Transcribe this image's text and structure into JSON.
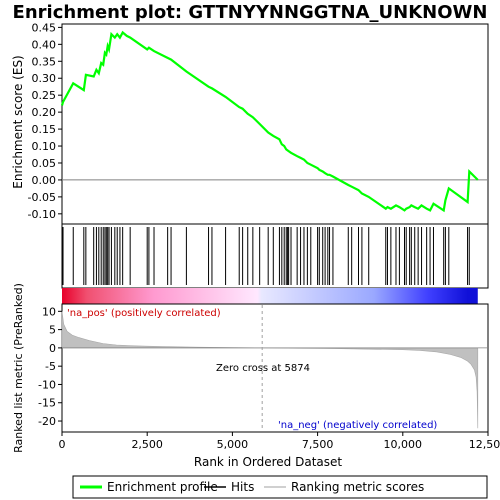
{
  "chart_data": {
    "type": "line",
    "title": "Enrichment plot: GTTNYYNNGGTNA_UNKNOWN",
    "es_panel": {
      "ylabel": "Enrichment score (ES)",
      "ylim": [
        -0.13,
        0.46
      ],
      "yticks": [
        -0.1,
        -0.05,
        0.0,
        0.05,
        0.1,
        0.15,
        0.2,
        0.25,
        0.3,
        0.35,
        0.4,
        0.45
      ],
      "ytick_labels": [
        "-0.10",
        "-0.05",
        "0.00",
        "0.05",
        "0.10",
        "0.15",
        "0.20",
        "0.25",
        "0.30",
        "0.35",
        "0.40",
        "0.45"
      ],
      "series": [
        {
          "name": "Enrichment profile",
          "color": "#00ff00",
          "x": [
            0,
            30,
            330,
            640,
            700,
            930,
            1010,
            1080,
            1150,
            1210,
            1260,
            1300,
            1340,
            1380,
            1450,
            1550,
            1620,
            1700,
            1780,
            1900,
            2000,
            2500,
            2550,
            2700,
            3100,
            3200,
            3650,
            4300,
            4400,
            4800,
            5200,
            5300,
            5450,
            5600,
            5800,
            6050,
            6200,
            6380,
            6450,
            6520,
            6580,
            6650,
            6720,
            6900,
            7000,
            7100,
            7200,
            7300,
            7500,
            7550,
            7650,
            7720,
            7800,
            7850,
            7950,
            8400,
            8500,
            8700,
            8800,
            9000,
            9500,
            9550,
            9650,
            9800,
            9900,
            10050,
            10100,
            10200,
            10250,
            10350,
            10450,
            10550,
            10700,
            10800,
            10900,
            11200,
            11250,
            11350,
            11900,
            11950,
            12200
          ],
          "y": [
            0.22,
            0.23,
            0.285,
            0.265,
            0.31,
            0.305,
            0.325,
            0.315,
            0.345,
            0.34,
            0.375,
            0.37,
            0.395,
            0.385,
            0.43,
            0.42,
            0.43,
            0.42,
            0.435,
            0.425,
            0.42,
            0.385,
            0.39,
            0.38,
            0.36,
            0.355,
            0.32,
            0.275,
            0.27,
            0.245,
            0.215,
            0.21,
            0.195,
            0.185,
            0.165,
            0.14,
            0.13,
            0.12,
            0.105,
            0.1,
            0.09,
            0.085,
            0.08,
            0.07,
            0.065,
            0.06,
            0.05,
            0.045,
            0.035,
            0.03,
            0.025,
            0.02,
            0.015,
            0.015,
            0.01,
            -0.015,
            -0.02,
            -0.03,
            -0.04,
            -0.05,
            -0.085,
            -0.08,
            -0.085,
            -0.075,
            -0.08,
            -0.09,
            -0.085,
            -0.08,
            -0.075,
            -0.08,
            -0.085,
            -0.075,
            -0.085,
            -0.09,
            -0.07,
            -0.09,
            -0.06,
            -0.025,
            -0.065,
            0.025,
            0.0
          ]
        }
      ]
    },
    "hits_panel": {
      "label": "Hits",
      "hit_positions": [
        30,
        330,
        640,
        700,
        930,
        1010,
        1080,
        1150,
        1210,
        1260,
        1300,
        1340,
        1380,
        1450,
        1550,
        1620,
        1700,
        1780,
        2000,
        2500,
        2550,
        2700,
        3100,
        3200,
        3650,
        4300,
        4400,
        4800,
        5200,
        5300,
        5450,
        5600,
        5800,
        6050,
        6200,
        6380,
        6450,
        6520,
        6580,
        6620,
        6650,
        6720,
        6900,
        7000,
        7100,
        7200,
        7300,
        7500,
        7550,
        7650,
        7720,
        7800,
        7850,
        7950,
        8400,
        8500,
        8700,
        8800,
        9000,
        9500,
        9550,
        9650,
        9800,
        9900,
        10050,
        10100,
        10200,
        10250,
        10350,
        10450,
        10550,
        10700,
        10800,
        10900,
        11200,
        11250,
        11350,
        11900,
        11950
      ]
    },
    "metric_panel": {
      "ylabel": "Ranked list metric (PreRanked)",
      "xlabel": "Rank in Ordered Dataset",
      "xlim": [
        0,
        12500
      ],
      "ylim": [
        -23,
        12
      ],
      "xticks": [
        0,
        2500,
        5000,
        7500,
        10000,
        12500
      ],
      "xtick_labels": [
        "0",
        "2,500",
        "5,000",
        "7,500",
        "10,000",
        "12,500"
      ],
      "yticks": [
        10,
        5,
        0,
        -5,
        -10,
        -15,
        -20
      ],
      "ytick_labels": [
        "10",
        "5",
        "0",
        "-5",
        "-10",
        "-15",
        "-20"
      ],
      "metric_x": [
        0,
        50,
        150,
        300,
        500,
        800,
        1200,
        1600,
        2000,
        2500,
        3000,
        4000,
        5000,
        5874,
        7000,
        8000,
        9000,
        10000,
        10500,
        11000,
        11400,
        11700,
        11900,
        12000,
        12100,
        12150,
        12180,
        12200
      ],
      "metric_y": [
        10,
        6.5,
        4.5,
        3.5,
        2.8,
        2.0,
        1.2,
        0.8,
        0.6,
        0.45,
        0.35,
        0.2,
        0.1,
        0.0,
        -0.1,
        -0.2,
        -0.35,
        -0.5,
        -0.7,
        -1.1,
        -1.8,
        -2.6,
        -3.6,
        -4.5,
        -6.0,
        -8.0,
        -12.0,
        -22.0
      ],
      "zero_cross_label": "Zero cross at 5874",
      "zero_cross_x": 5874,
      "pos_label": "'na_pos' (positively correlated)",
      "neg_label": "'na_neg' (negatively correlated)",
      "pos_color": "#cc0000",
      "neg_color": "#0000cc"
    },
    "legend": {
      "placement": "bottom",
      "entries": [
        {
          "label": "Enrichment profile",
          "color": "#00ff00"
        },
        {
          "label": "Hits",
          "color": "#000000"
        },
        {
          "label": "Ranking metric scores",
          "color": "#c0c0c0"
        }
      ]
    }
  }
}
